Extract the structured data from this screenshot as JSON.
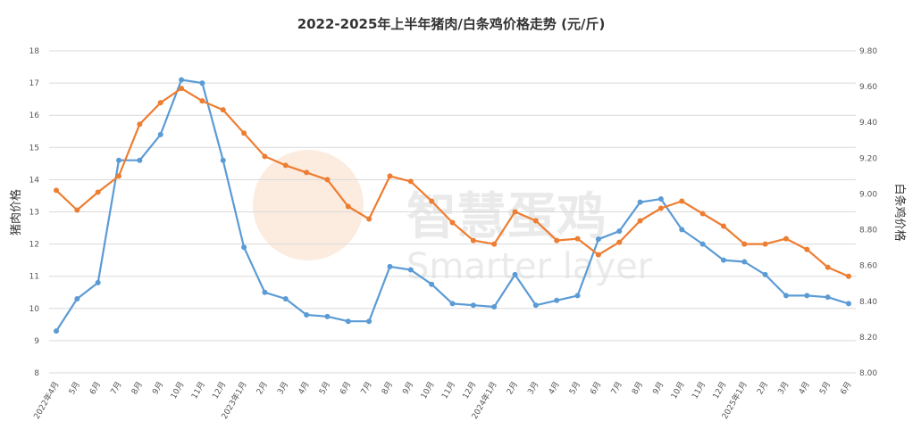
{
  "chart_data": {
    "type": "line",
    "title": "2022-2025年上半年猪肉/白条鸡价格走势 (元/斤)",
    "left_axis_label": "猪肉价格",
    "right_axis_label": "白条鸡价格",
    "left_ylim": [
      8,
      18
    ],
    "left_yticks": [
      "8",
      "9",
      "10",
      "11",
      "12",
      "13",
      "14",
      "15",
      "16",
      "17",
      "18"
    ],
    "right_ylim": [
      8.0,
      9.8
    ],
    "right_yticks": [
      "8.00",
      "8.20",
      "8.40",
      "8.60",
      "8.80",
      "9.00",
      "9.20",
      "9.40",
      "9.60",
      "9.80"
    ],
    "grid": true,
    "categories": [
      "2022年4月",
      "5月",
      "6月",
      "7月",
      "8月",
      "9月",
      "10月",
      "11月",
      "12月",
      "2023年1月",
      "2月",
      "3月",
      "4月",
      "5月",
      "6月",
      "7月",
      "8月",
      "9月",
      "10月",
      "11月",
      "12月",
      "2024年1月",
      "2月",
      "3月",
      "4月",
      "5月",
      "6月",
      "7月",
      "8月",
      "9月",
      "10月",
      "11月",
      "12月",
      "2025年1月",
      "2月",
      "3月",
      "4月",
      "5月",
      "6月"
    ],
    "series": [
      {
        "axis": "left",
        "color": "#5b9bd5",
        "values": [
          9.3,
          10.3,
          10.8,
          14.6,
          14.6,
          15.4,
          17.1,
          17.0,
          14.6,
          11.9,
          10.5,
          10.3,
          9.8,
          9.75,
          9.6,
          9.6,
          11.3,
          11.2,
          10.75,
          10.15,
          10.1,
          10.05,
          11.05,
          10.1,
          10.25,
          10.4,
          12.15,
          12.4,
          13.3,
          13.4,
          12.45,
          12.0,
          11.5,
          11.45,
          11.05,
          10.4,
          10.4,
          10.35,
          10.15
        ]
      },
      {
        "axis": "right",
        "color": "#ed7d31",
        "values": [
          9.02,
          8.91,
          9.01,
          9.1,
          9.39,
          9.51,
          9.59,
          9.52,
          9.47,
          9.34,
          9.21,
          9.16,
          9.12,
          9.08,
          8.93,
          8.86,
          9.1,
          9.07,
          8.96,
          8.84,
          8.74,
          8.72,
          8.9,
          8.85,
          8.74,
          8.75,
          8.66,
          8.73,
          8.85,
          8.92,
          8.96,
          8.89,
          8.82,
          8.72,
          8.72,
          8.75,
          8.69,
          8.59,
          8.54
        ]
      }
    ]
  },
  "watermark": {
    "text_cn": "智慧蛋鸡",
    "text_en": "Smarter layer"
  }
}
